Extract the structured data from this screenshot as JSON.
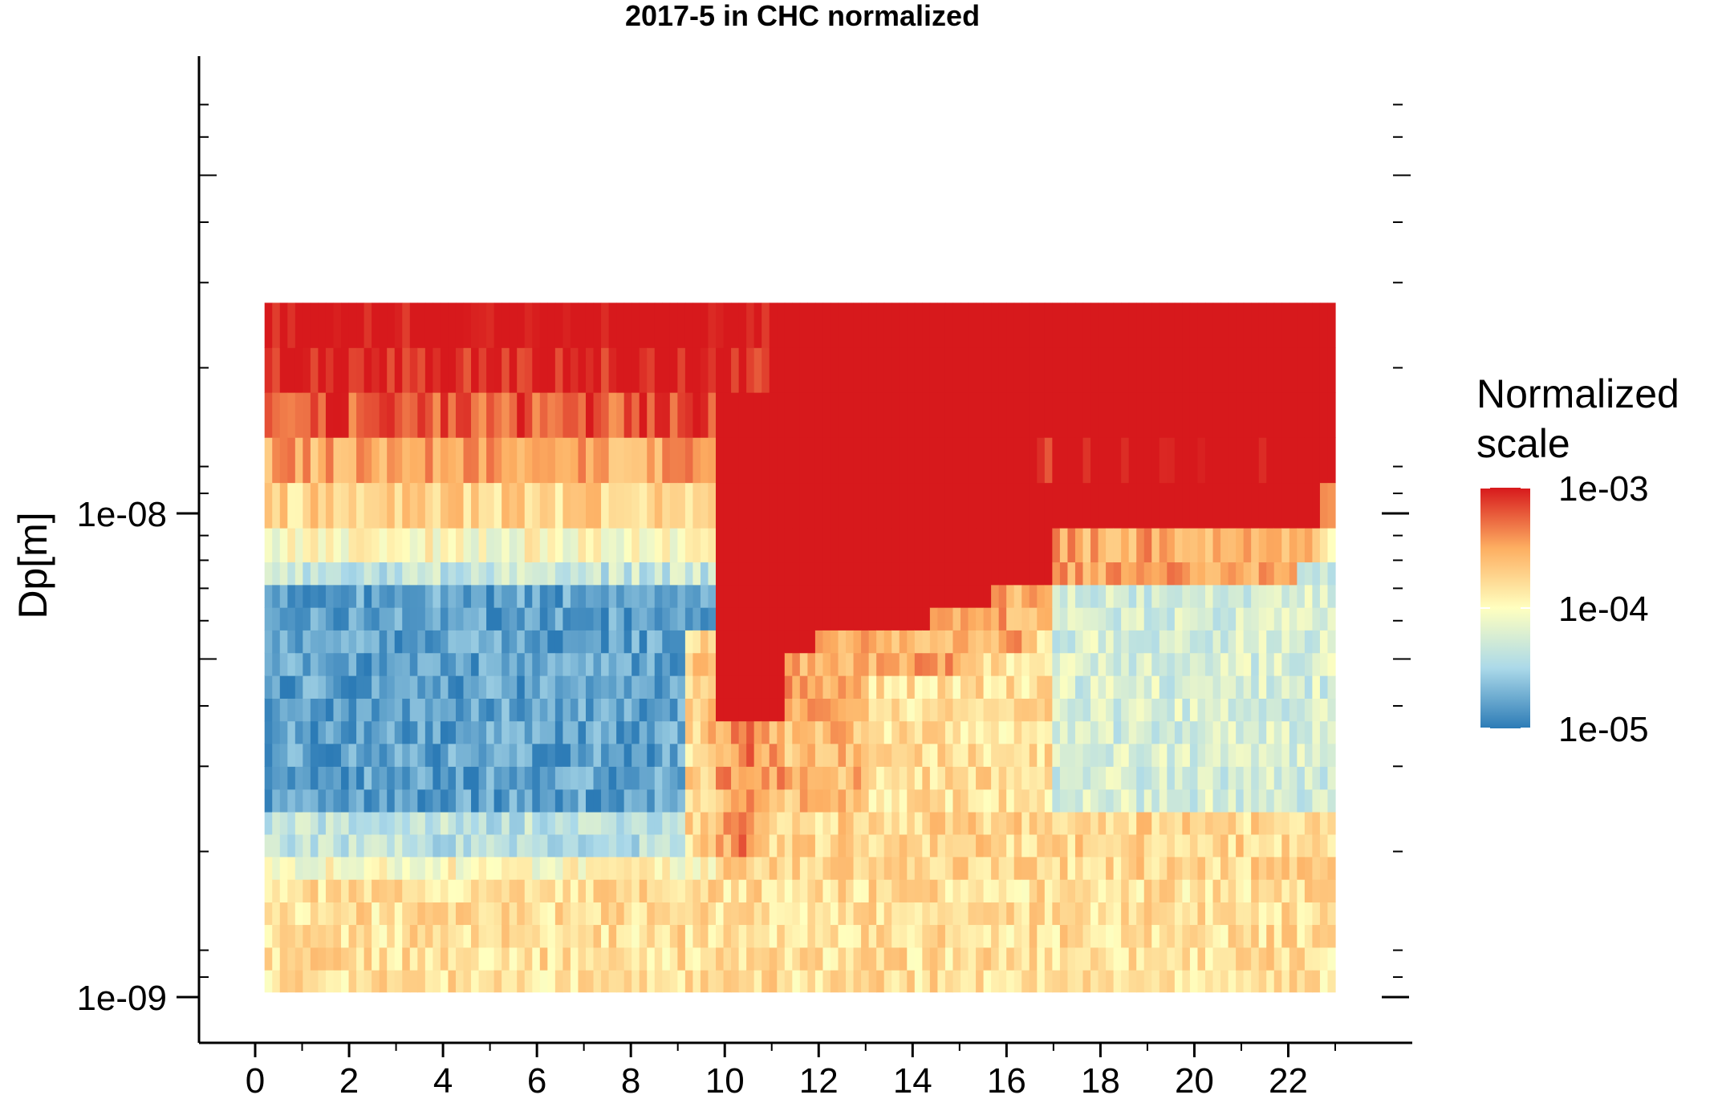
{
  "chart_data": {
    "type": "heatmap",
    "title": "2017-5 in CHC normalized",
    "xlabel": "",
    "ylabel": "Dp[m]",
    "x_ticks": [
      "0",
      "2",
      "4",
      "6",
      "8",
      "10",
      "12",
      "14",
      "16",
      "18",
      "20",
      "22"
    ],
    "xlim": [
      0,
      23
    ],
    "y_scale": "log",
    "y_ticks": [
      "1e-09",
      "1e-08"
    ],
    "ylim": [
      1e-09,
      6e-08
    ],
    "legend": {
      "title": "Normalized scale",
      "scale": "log",
      "range": [
        1e-05,
        0.001
      ],
      "ticks": [
        "1e-03",
        "1e-04",
        "1e-05"
      ],
      "placement": "right",
      "colors": [
        "#2c7bb6",
        "#abd9e9",
        "#ffffbf",
        "#fdae61",
        "#d7191c"
      ]
    },
    "hours": {
      "start": 0.2,
      "end": 23.0
    },
    "size_bins": {
      "count": 25,
      "diameters_m": [
        1.08e-09,
        1.2e-09,
        1.34e-09,
        1.49e-09,
        1.66e-09,
        1.85e-09,
        2.06e-09,
        2.29e-09,
        2.55e-09,
        2.84e-09,
        3.17e-09,
        3.53e-09,
        3.93e-09,
        4.38e-09,
        4.88e-09,
        5.44e-09,
        6.06e-09,
        6.75e-09,
        7.52e-09,
        8.38e-09,
        1.04e-08,
        1.29e-08,
        1.6e-08,
        1.98e-08,
        2.45e-08
      ]
    },
    "time_bins": {
      "count": 140,
      "start_hour": 0.2,
      "end_hour": 23.0
    },
    "grid": false,
    "description_regions": [
      {
        "hours": [
          0.2,
          10.0
        ],
        "dp_range_m": [
          1.7e-09,
          8e-09
        ],
        "level": 2e-05
      },
      {
        "hours": [
          0.2,
          23.0
        ],
        "dp_range_m": [
          1e-09,
          1.7e-09
        ],
        "level": 0.0002
      },
      {
        "hours": [
          0.2,
          23.0
        ],
        "dp_range_m": [
          1.8e-08,
          3e-08
        ],
        "level": 0.001
      },
      {
        "hours": [
          11.0,
          17.0
        ],
        "dp_range_m": [
          6e-09,
          1.8e-08
        ],
        "level": 0.001
      },
      {
        "hours": [
          11.0,
          12.0
        ],
        "dp_range_m": [
          3.5e-09,
          6e-09
        ],
        "level": 0.001
      },
      {
        "hours": [
          17.0,
          23.0
        ],
        "dp_range_m": [
          2e-09,
          7e-09
        ],
        "level": 5e-05
      }
    ]
  }
}
